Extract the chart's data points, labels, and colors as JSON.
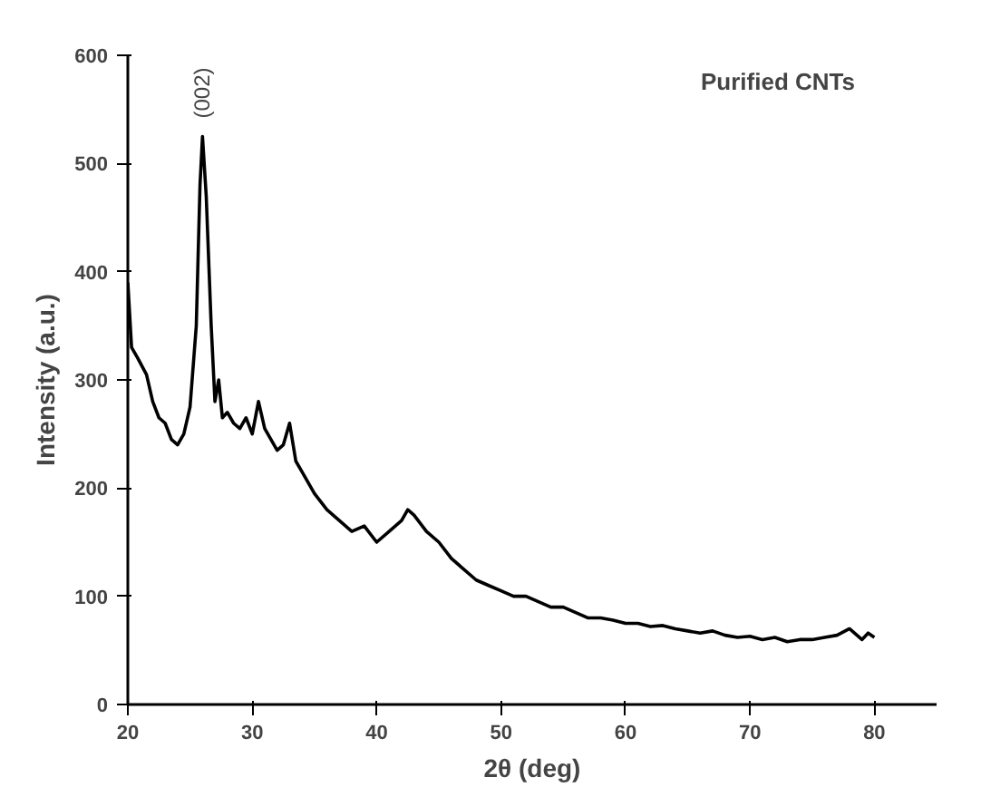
{
  "chart_data": {
    "type": "line",
    "xlabel": "2θ (deg)",
    "ylabel": "Intensity (a.u.)",
    "annotations": [
      "Purified CNTs",
      "(002)"
    ],
    "x": [
      20,
      20.3,
      20.8,
      21.5,
      22,
      22.5,
      23,
      23.5,
      24,
      24.5,
      25,
      25.5,
      25.8,
      26,
      26.3,
      26.7,
      27,
      27.3,
      27.6,
      28,
      28.5,
      29,
      29.5,
      30,
      30.5,
      31,
      31.5,
      32,
      32.5,
      33,
      33.5,
      34,
      35,
      36,
      37,
      38,
      39,
      40,
      41,
      42,
      42.5,
      43,
      44,
      45,
      46,
      47,
      48,
      49,
      50,
      51,
      52,
      53,
      54,
      55,
      56,
      57,
      58,
      59,
      60,
      61,
      62,
      63,
      64,
      65,
      66,
      67,
      68,
      69,
      70,
      71,
      72,
      73,
      74,
      75,
      76,
      77,
      78,
      79,
      79.5,
      80
    ],
    "series": [
      {
        "color": "#000000",
        "values": [
          390,
          330,
          320,
          305,
          280,
          265,
          260,
          245,
          240,
          250,
          275,
          350,
          480,
          525,
          470,
          350,
          280,
          300,
          265,
          270,
          260,
          255,
          265,
          250,
          280,
          255,
          245,
          235,
          240,
          260,
          225,
          215,
          195,
          180,
          170,
          160,
          165,
          150,
          160,
          170,
          180,
          175,
          160,
          150,
          135,
          125,
          115,
          110,
          105,
          100,
          100,
          95,
          90,
          90,
          85,
          80,
          80,
          78,
          75,
          75,
          72,
          73,
          70,
          68,
          66,
          68,
          64,
          62,
          63,
          60,
          62,
          58,
          60,
          60,
          62,
          64,
          70,
          60,
          66,
          62
        ]
      }
    ],
    "xlim": [
      20,
      85
    ],
    "ylim": [
      0,
      600
    ],
    "xticks": [
      20,
      30,
      40,
      50,
      60,
      70,
      80
    ],
    "yticks": [
      0,
      100,
      200,
      300,
      400,
      500,
      600
    ],
    "grid": false,
    "line_style": "solid",
    "marker": "none"
  }
}
